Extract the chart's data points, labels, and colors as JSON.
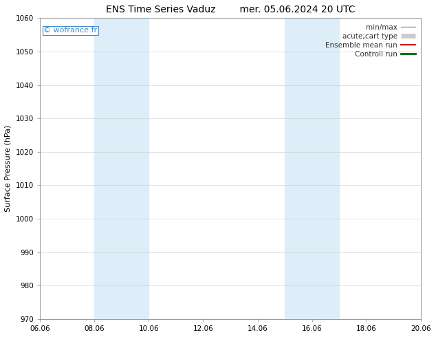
{
  "title_left": "ENS Time Series Vaduz",
  "title_right": "mer. 05.06.2024 20 UTC",
  "ylabel": "Surface Pressure (hPa)",
  "ylim": [
    970,
    1060
  ],
  "yticks": [
    970,
    980,
    990,
    1000,
    1010,
    1020,
    1030,
    1040,
    1050,
    1060
  ],
  "xlim_start": 6.06,
  "xlim_end": 20.06,
  "xtick_labels": [
    "06.06",
    "08.06",
    "10.06",
    "12.06",
    "14.06",
    "16.06",
    "18.06",
    "20.06"
  ],
  "xtick_positions": [
    6.06,
    8.06,
    10.06,
    12.06,
    14.06,
    16.06,
    18.06,
    20.06
  ],
  "shaded_bands": [
    {
      "x_start": 8.06,
      "x_end": 10.06
    },
    {
      "x_start": 15.06,
      "x_end": 16.06
    },
    {
      "x_start": 16.06,
      "x_end": 17.06
    }
  ],
  "band_color": "#ddeef9",
  "watermark_text": "© wofrance.fr",
  "watermark_color": "#4488cc",
  "legend_entries": [
    {
      "label": "min/max",
      "color": "#999999",
      "lw": 1.0,
      "ls": "-"
    },
    {
      "label": "acute;cart type",
      "color": "#cccccc",
      "lw": 5,
      "ls": "-"
    },
    {
      "label": "Ensemble mean run",
      "color": "#cc0000",
      "lw": 1.5,
      "ls": "-"
    },
    {
      "label": "Controll run",
      "color": "#006600",
      "lw": 2.0,
      "ls": "-"
    }
  ],
  "bg_color": "#ffffff",
  "title_fontsize": 10,
  "label_fontsize": 8,
  "tick_fontsize": 7.5,
  "legend_fontsize": 7.5
}
